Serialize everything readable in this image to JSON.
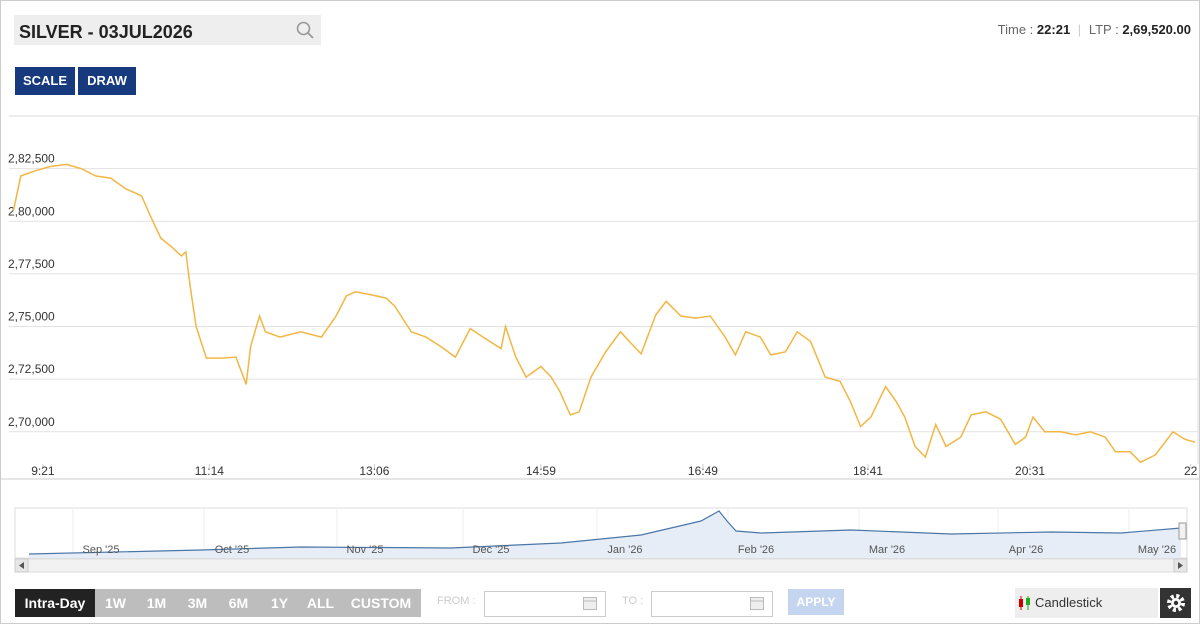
{
  "header": {
    "symbol": "SILVER - 03JUL2026",
    "time_label": "Time :",
    "time": "22:21",
    "ltp_label": "LTP :",
    "ltp": "2,69,520.00"
  },
  "toolbar": {
    "buttons": [
      "SCALE",
      "DRAW"
    ]
  },
  "chart_data": {
    "type": "line",
    "color": "#f2b643",
    "grid": true,
    "x": [
      541,
      546,
      556,
      566,
      577,
      587,
      597,
      607,
      617,
      628,
      634,
      641,
      648,
      655,
      658,
      661,
      665,
      672,
      682,
      692,
      699,
      702,
      708,
      712,
      722,
      736,
      750,
      760,
      767,
      773,
      784,
      794,
      800,
      811,
      821,
      831,
      841,
      851,
      862,
      872,
      875,
      882,
      889,
      899,
      906,
      912,
      919,
      925,
      933,
      943,
      953,
      967,
      977,
      984,
      994,
      1004,
      1014,
      1024,
      1031,
      1038,
      1048,
      1055,
      1065,
      1073,
      1082,
      1092,
      1102,
      1109,
      1116,
      1123,
      1133,
      1140,
      1146,
      1153,
      1160,
      1167,
      1174,
      1184,
      1191,
      1201,
      1211,
      1221,
      1228,
      1233,
      1241,
      1252,
      1262,
      1272,
      1282,
      1289,
      1299,
      1306,
      1316,
      1328,
      1336,
      1343
    ],
    "values": [
      280500,
      282150,
      282400,
      282600,
      282700,
      282500,
      282150,
      282050,
      281550,
      281200,
      280250,
      279200,
      278800,
      278350,
      278550,
      276900,
      275000,
      273500,
      273500,
      273550,
      272250,
      274050,
      275500,
      274750,
      274500,
      274750,
      274500,
      275500,
      276450,
      276650,
      276500,
      276350,
      275950,
      274750,
      274500,
      274050,
      273550,
      274900,
      274400,
      273950,
      275000,
      273550,
      272600,
      273100,
      272600,
      271900,
      270800,
      270950,
      272600,
      273800,
      274750,
      273700,
      275550,
      276200,
      275500,
      275400,
      275500,
      274500,
      273650,
      274750,
      274500,
      273650,
      273800,
      274750,
      274300,
      272600,
      272400,
      271450,
      270250,
      270700,
      272150,
      271450,
      270700,
      269300,
      268800,
      270350,
      269300,
      269750,
      270800,
      270950,
      270600,
      269400,
      269750,
      270700,
      270000,
      270000,
      269850,
      270000,
      269750,
      269050,
      269050,
      268550,
      268900,
      270000,
      269650,
      269500
    ],
    "xlim": [
      538,
      1345
    ],
    "xticks": [
      {
        "value": 561,
        "label": "9:21"
      },
      {
        "value": 674,
        "label": "11:14"
      },
      {
        "value": 786,
        "label": "13:06"
      },
      {
        "value": 899,
        "label": "14:59"
      },
      {
        "value": 1009,
        "label": "16:49"
      },
      {
        "value": 1121,
        "label": "18:41"
      },
      {
        "value": 1231,
        "label": "20:31"
      },
      {
        "value": 1340,
        "label": "22"
      }
    ],
    "ylim": [
      268470,
      285000
    ],
    "yticks": [
      {
        "value": 270000,
        "label": "2,70,000"
      },
      {
        "value": 272500,
        "label": "2,72,500"
      },
      {
        "value": 275000,
        "label": "2,75,000"
      },
      {
        "value": 277500,
        "label": "2,77,500"
      },
      {
        "value": 280000,
        "label": "2,80,000"
      },
      {
        "value": 282500,
        "label": "2,82,500"
      }
    ]
  },
  "navigator": {
    "labels": [
      "Sep '25",
      "Oct '25",
      "Nov '25",
      "Dec '25",
      "Jan '26",
      "Feb '26",
      "Mar '26",
      "Apr '26",
      "May '26"
    ]
  },
  "footer": {
    "periods": [
      "Intra-Day",
      "1W",
      "1M",
      "3M",
      "6M",
      "1Y",
      "ALL",
      "CUSTOM"
    ],
    "from_label": "FROM :",
    "to_label": "TO :",
    "apply": "APPLY",
    "chart_type": "Candlestick"
  }
}
